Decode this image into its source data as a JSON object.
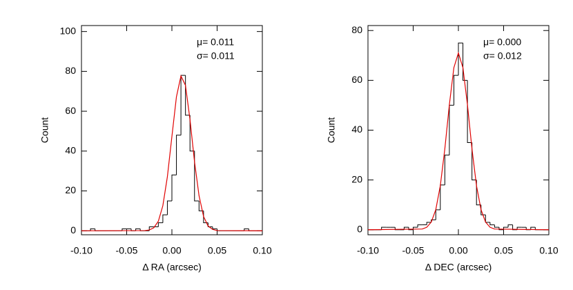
{
  "chart_data": [
    {
      "type": "histogram",
      "xlabel": "Δ RA (arcsec)",
      "ylabel": "Count",
      "annotations": [
        "μ= 0.011",
        "σ= 0.011"
      ],
      "bins": [
        -0.1,
        -0.095,
        -0.09,
        -0.085,
        -0.08,
        -0.075,
        -0.07,
        -0.065,
        -0.06,
        -0.055,
        -0.05,
        -0.045,
        -0.04,
        -0.035,
        -0.03,
        -0.025,
        -0.02,
        -0.015,
        -0.01,
        -0.005,
        0,
        0.005,
        0.01,
        0.015,
        0.02,
        0.025,
        0.03,
        0.035,
        0.04,
        0.045,
        0.05,
        0.055,
        0.06,
        0.065,
        0.07,
        0.075,
        0.08,
        0.085,
        0.09,
        0.095,
        0.1
      ],
      "values": [
        0,
        0,
        1,
        0,
        0,
        0,
        0,
        0,
        0,
        1,
        1,
        0,
        1,
        0,
        0,
        2,
        2,
        4,
        8,
        15,
        28,
        48,
        78,
        58,
        40,
        15,
        10,
        4,
        2,
        1,
        0,
        0,
        0,
        0,
        0,
        0,
        1,
        0,
        0,
        0
      ],
      "color": "#000000",
      "fit": {
        "color": "#e00000",
        "x": [
          -0.1,
          -0.03,
          -0.025,
          -0.02,
          -0.015,
          -0.01,
          -0.005,
          0,
          0.005,
          0.01,
          0.015,
          0.02,
          0.025,
          0.03,
          0.035,
          0.04,
          0.045,
          0.05,
          0.1
        ],
        "values": [
          0,
          0.1,
          0.4,
          1.5,
          4.8,
          12.6,
          27.1,
          47.3,
          67.2,
          77.7,
          73.0,
          55.8,
          34.7,
          17.6,
          7.2,
          2.4,
          0.7,
          0.1,
          0
        ]
      },
      "xlim": [
        -0.1,
        0.1
      ],
      "ylim": [
        -2,
        103
      ],
      "xticks": [
        {
          "value": -0.1,
          "label": "-0.10"
        },
        {
          "value": -0.05,
          "label": "-0.05"
        },
        {
          "value": 0,
          "label": "0.00"
        },
        {
          "value": 0.05,
          "label": "0.05"
        },
        {
          "value": 0.1,
          "label": "0.10"
        }
      ],
      "yticks": [
        0,
        20,
        40,
        60,
        80,
        100
      ]
    },
    {
      "type": "histogram",
      "xlabel": "Δ DEC (arcsec)",
      "ylabel": "Count",
      "annotations": [
        "μ= 0.000",
        "σ= 0.012"
      ],
      "bins": [
        -0.1,
        -0.095,
        -0.09,
        -0.085,
        -0.08,
        -0.075,
        -0.07,
        -0.065,
        -0.06,
        -0.055,
        -0.05,
        -0.045,
        -0.04,
        -0.035,
        -0.03,
        -0.025,
        -0.02,
        -0.015,
        -0.01,
        -0.005,
        0,
        0.005,
        0.01,
        0.015,
        0.02,
        0.025,
        0.03,
        0.035,
        0.04,
        0.045,
        0.05,
        0.055,
        0.06,
        0.065,
        0.07,
        0.075,
        0.08,
        0.085,
        0.09,
        0.095,
        0.1
      ],
      "values": [
        0,
        0,
        0,
        1,
        1,
        1,
        0,
        0,
        1,
        0,
        1,
        2,
        2,
        3,
        4,
        8,
        18,
        30,
        50,
        62,
        75,
        60,
        35,
        20,
        10,
        6,
        3,
        2,
        1,
        0,
        1,
        2,
        0,
        1,
        1,
        0,
        1,
        0,
        0,
        0
      ],
      "color": "#000000",
      "fit": {
        "color": "#e00000",
        "x": [
          -0.1,
          -0.04,
          -0.035,
          -0.03,
          -0.025,
          -0.02,
          -0.015,
          -0.01,
          -0.005,
          0,
          0.005,
          0.01,
          0.015,
          0.02,
          0.025,
          0.03,
          0.035,
          0.04,
          0.1
        ],
        "values": [
          0,
          0.3,
          1.0,
          3.1,
          8.1,
          17.7,
          32.5,
          50.2,
          65.1,
          71,
          65.1,
          50.2,
          32.5,
          17.7,
          8.1,
          3.1,
          1.0,
          0.3,
          0
        ]
      },
      "xlim": [
        -0.1,
        0.1
      ],
      "ylim": [
        -2,
        82
      ],
      "xticks": [
        {
          "value": -0.1,
          "label": "-0.10"
        },
        {
          "value": -0.05,
          "label": "-0.05"
        },
        {
          "value": 0,
          "label": "0.00"
        },
        {
          "value": 0.05,
          "label": "0.05"
        },
        {
          "value": 0.1,
          "label": "0.10"
        }
      ],
      "yticks": [
        0,
        20,
        40,
        60,
        80
      ]
    }
  ]
}
